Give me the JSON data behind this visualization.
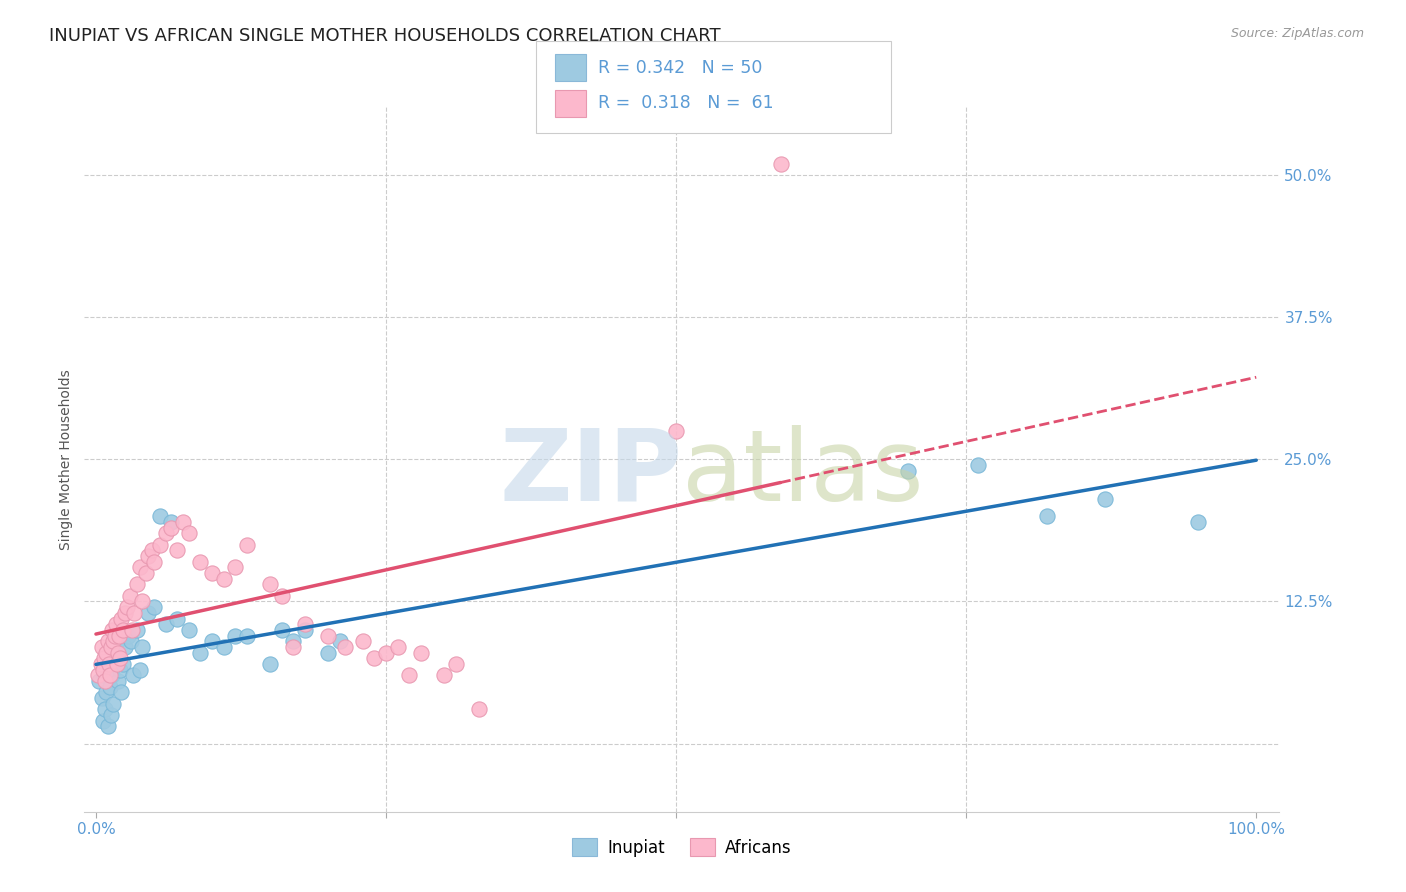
{
  "title": "INUPIAT VS AFRICAN SINGLE MOTHER HOUSEHOLDS CORRELATION CHART",
  "source": "Source: ZipAtlas.com",
  "ylabel": "Single Mother Households",
  "ytick_values": [
    0.0,
    0.125,
    0.25,
    0.375,
    0.5
  ],
  "ytick_labels": [
    "",
    "12.5%",
    "25.0%",
    "37.5%",
    "50.0%"
  ],
  "xtick_values": [
    0.0,
    0.25,
    0.5,
    0.75,
    1.0
  ],
  "xtick_labels": [
    "0.0%",
    "",
    "",
    "",
    "100.0%"
  ],
  "xlim": [
    -0.01,
    1.02
  ],
  "ylim": [
    -0.06,
    0.56
  ],
  "legend_inupiat_R": "0.342",
  "legend_inupiat_N": "50",
  "legend_african_R": "0.318",
  "legend_african_N": "61",
  "inupiat_color": "#9ecae1",
  "african_color": "#fcb8cc",
  "trend_inupiat_color": "#2171b5",
  "trend_african_color": "#e05070",
  "background_color": "#ffffff",
  "grid_color": "#cccccc",
  "title_fontsize": 13,
  "axis_label_fontsize": 10,
  "tick_fontsize": 11,
  "tick_color": "#5b9bd5",
  "source_fontsize": 9,
  "inupiat_scatter_x": [
    0.003,
    0.005,
    0.006,
    0.007,
    0.008,
    0.009,
    0.01,
    0.011,
    0.012,
    0.013,
    0.014,
    0.015,
    0.016,
    0.017,
    0.018,
    0.019,
    0.02,
    0.021,
    0.022,
    0.023,
    0.025,
    0.028,
    0.03,
    0.032,
    0.035,
    0.038,
    0.04,
    0.045,
    0.05,
    0.055,
    0.06,
    0.065,
    0.07,
    0.08,
    0.09,
    0.1,
    0.11,
    0.12,
    0.13,
    0.15,
    0.16,
    0.17,
    0.18,
    0.2,
    0.21,
    0.7,
    0.76,
    0.82,
    0.87,
    0.95
  ],
  "inupiat_scatter_y": [
    0.055,
    0.04,
    0.02,
    0.06,
    0.03,
    0.045,
    0.015,
    0.07,
    0.05,
    0.025,
    0.06,
    0.035,
    0.075,
    0.08,
    0.09,
    0.055,
    0.095,
    0.065,
    0.045,
    0.07,
    0.085,
    0.095,
    0.09,
    0.06,
    0.1,
    0.065,
    0.085,
    0.115,
    0.12,
    0.2,
    0.105,
    0.195,
    0.11,
    0.1,
    0.08,
    0.09,
    0.085,
    0.095,
    0.095,
    0.07,
    0.1,
    0.09,
    0.1,
    0.08,
    0.09,
    0.24,
    0.245,
    0.2,
    0.215,
    0.195
  ],
  "african_scatter_x": [
    0.002,
    0.004,
    0.005,
    0.006,
    0.007,
    0.008,
    0.009,
    0.01,
    0.011,
    0.012,
    0.013,
    0.014,
    0.015,
    0.016,
    0.017,
    0.018,
    0.019,
    0.02,
    0.021,
    0.022,
    0.023,
    0.025,
    0.027,
    0.029,
    0.031,
    0.033,
    0.035,
    0.038,
    0.04,
    0.043,
    0.045,
    0.048,
    0.05,
    0.055,
    0.06,
    0.065,
    0.07,
    0.075,
    0.08,
    0.09,
    0.1,
    0.11,
    0.12,
    0.13,
    0.15,
    0.16,
    0.17,
    0.18,
    0.2,
    0.215,
    0.23,
    0.24,
    0.25,
    0.26,
    0.27,
    0.28,
    0.3,
    0.31,
    0.33,
    0.5,
    0.59
  ],
  "african_scatter_y": [
    0.06,
    0.07,
    0.085,
    0.065,
    0.075,
    0.055,
    0.08,
    0.09,
    0.07,
    0.06,
    0.085,
    0.1,
    0.09,
    0.095,
    0.105,
    0.07,
    0.08,
    0.095,
    0.075,
    0.11,
    0.1,
    0.115,
    0.12,
    0.13,
    0.1,
    0.115,
    0.14,
    0.155,
    0.125,
    0.15,
    0.165,
    0.17,
    0.16,
    0.175,
    0.185,
    0.19,
    0.17,
    0.195,
    0.185,
    0.16,
    0.15,
    0.145,
    0.155,
    0.175,
    0.14,
    0.13,
    0.085,
    0.105,
    0.095,
    0.085,
    0.09,
    0.075,
    0.08,
    0.085,
    0.06,
    0.08,
    0.06,
    0.07,
    0.03,
    0.275,
    0.51
  ]
}
